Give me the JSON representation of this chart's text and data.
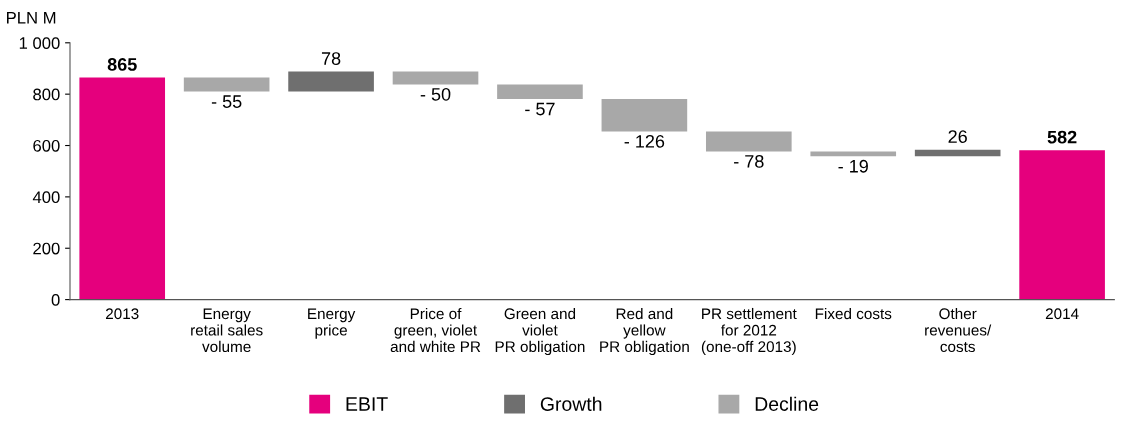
{
  "chart_data": {
    "type": "bar",
    "ylabel": "PLN M",
    "stacked": true,
    "categories": [
      "2013",
      "Energy\nretail sales\nvolume",
      "Energy\nprice",
      "Price of\ngreen, violet\nand white PR",
      "Green and\nviolet\nPR obligation",
      "Red and\nyellow\nPR obligation",
      "PR settlement\nfor 2012\n(one-off 2013)",
      "Fixed costs",
      "Other\nrevenues/\ncosts",
      "2014"
    ],
    "series": [
      {
        "name": "EBIT",
        "color": "#e5007d",
        "values": [
          865,
          null,
          null,
          null,
          null,
          null,
          null,
          null,
          null,
          582
        ],
        "base": [
          0,
          null,
          null,
          null,
          null,
          null,
          null,
          null,
          null,
          0
        ],
        "value_labels": [
          "865",
          null,
          null,
          null,
          null,
          null,
          null,
          null,
          null,
          "582"
        ]
      },
      {
        "name": "Growth",
        "color": "#6f6f6f",
        "values": [
          null,
          null,
          78,
          null,
          null,
          null,
          null,
          null,
          26,
          null
        ],
        "base": [
          null,
          null,
          810,
          null,
          null,
          null,
          null,
          null,
          558,
          null
        ],
        "value_labels": [
          null,
          null,
          "78",
          null,
          null,
          null,
          null,
          null,
          "26",
          null
        ]
      },
      {
        "name": "Decline",
        "color": "#a8a8a8",
        "values": [
          null,
          -55,
          null,
          -50,
          -57,
          -126,
          -78,
          -19,
          null,
          null
        ],
        "base": [
          null,
          865,
          null,
          888,
          838,
          781,
          655,
          577,
          null,
          null
        ],
        "value_labels": [
          null,
          "- 55",
          null,
          "- 50",
          "- 57",
          "- 126",
          "- 78",
          "- 19",
          null,
          null
        ]
      }
    ],
    "ylim": [
      0,
      1000
    ],
    "yticks": [
      0,
      200,
      400,
      600,
      800,
      {
        "value": 1000,
        "label": "1 000"
      }
    ],
    "grid": false,
    "legend": "bottom"
  }
}
